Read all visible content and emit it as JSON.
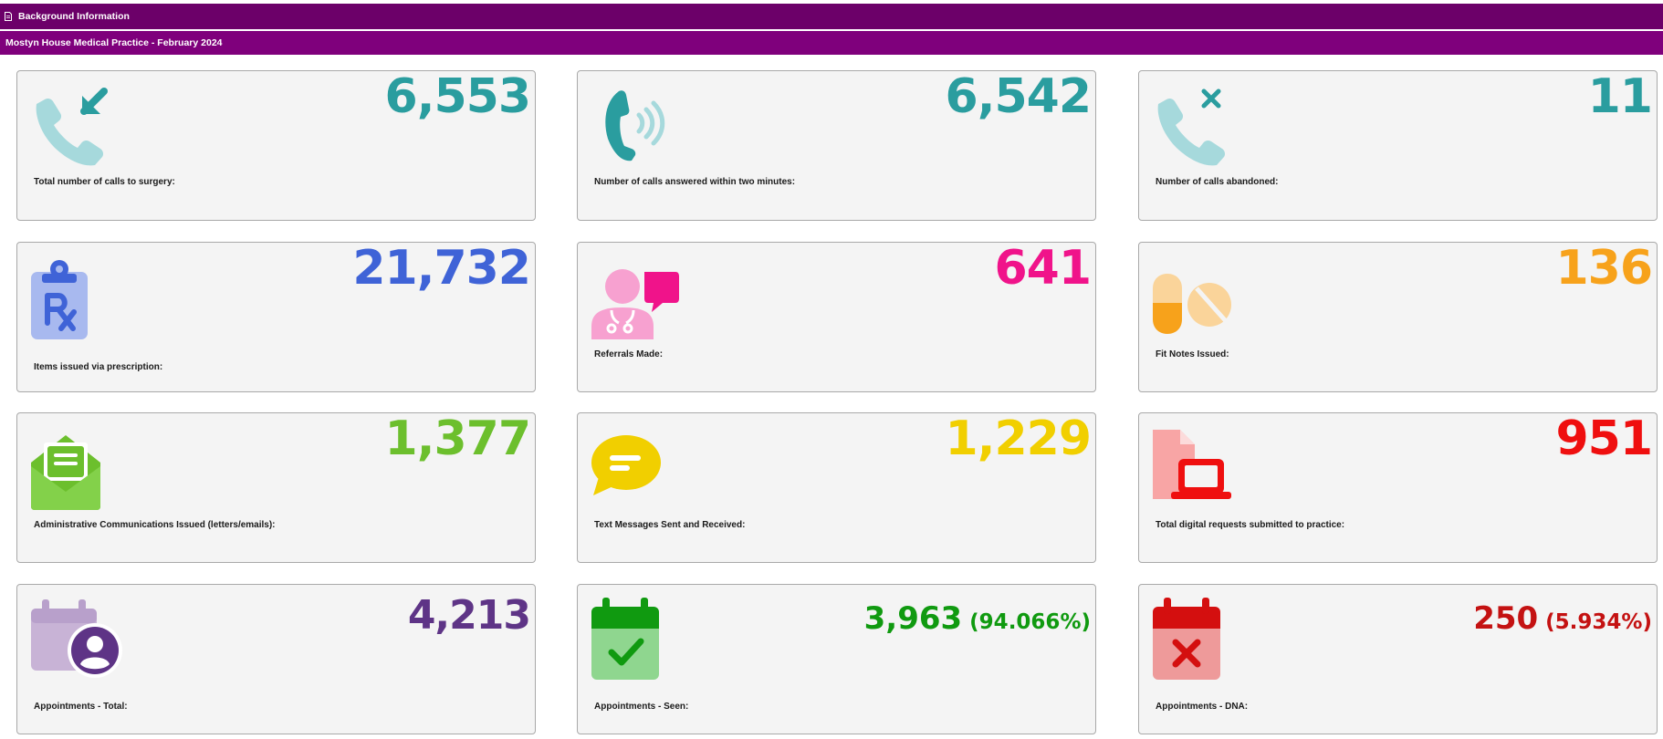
{
  "header": {
    "title": "Background Information",
    "subtitle": "Mostyn House Medical Practice - February 2024"
  },
  "cards": [
    {
      "id": "calls-total",
      "value": "6,553",
      "label": "Total number of calls to surgery:",
      "color": "#2a9d9f",
      "icon": "phone-incoming-icon"
    },
    {
      "id": "calls-answered",
      "value": "6,542",
      "label": "Number of calls answered within two minutes:",
      "color": "#2a9d9f",
      "icon": "phone-ringing-icon"
    },
    {
      "id": "calls-abandoned",
      "value": "11",
      "label": "Number of calls abandoned:",
      "color": "#2a9d9f",
      "icon": "phone-missed-icon"
    },
    {
      "id": "prescriptions",
      "value": "21,732",
      "label": "Items issued via prescription:",
      "color": "#3f63d7",
      "icon": "prescription-clipboard-icon"
    },
    {
      "id": "referrals",
      "value": "641",
      "label": "Referrals Made:",
      "color": "#f0138a",
      "icon": "doctor-chat-icon"
    },
    {
      "id": "fit-notes",
      "value": "136",
      "label": "Fit Notes Issued:",
      "color": "#f7a21b",
      "icon": "pills-icon"
    },
    {
      "id": "admin-comms",
      "value": "1,377",
      "label": "Administrative Communications Issued (letters/emails):",
      "color": "#6cbf2d",
      "icon": "open-envelope-icon"
    },
    {
      "id": "text-messages",
      "value": "1,229",
      "label": "Text Messages Sent and Received:",
      "color": "#f1cf00",
      "icon": "speech-bubble-icon"
    },
    {
      "id": "digital-requests",
      "value": "951",
      "label": "Total digital requests submitted to practice:",
      "color": "#ef0f0f",
      "icon": "document-laptop-icon"
    },
    {
      "id": "appointments-total",
      "value": "4,213",
      "label": "Appointments - Total:",
      "color": "#5e3486",
      "icon": "calendar-user-icon"
    },
    {
      "id": "appointments-seen",
      "value": "3,963",
      "pct": "(94.066%)",
      "label": "Appointments - Seen:",
      "color": "#109a10",
      "icon": "calendar-check-icon"
    },
    {
      "id": "appointments-dna",
      "value": "250",
      "pct": "(5.934%)",
      "label": "Appointments - DNA:",
      "color": "#c41212",
      "icon": "calendar-cross-icon"
    }
  ]
}
